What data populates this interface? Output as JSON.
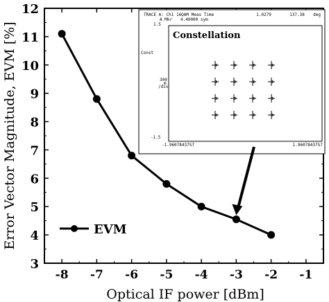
{
  "chart_data": {
    "type": "line",
    "xlabel": "Optical IF power [dBm]",
    "ylabel": "Error Vector Magnitude, EVM [%]",
    "xlim": [
      -8.5,
      -0.5
    ],
    "ylim": [
      3,
      12
    ],
    "x_ticks": [
      -8,
      -7,
      -6,
      -5,
      -4,
      -3,
      -2,
      -1
    ],
    "y_ticks": [
      3,
      4,
      5,
      6,
      7,
      8,
      9,
      10,
      11,
      12
    ],
    "grid": false,
    "legend_position": "bottom-left",
    "series": [
      {
        "name": "EVM",
        "color": "#000000",
        "x": [
          -8,
          -7,
          -6,
          -5,
          -4,
          -3,
          -2
        ],
        "y": [
          11.1,
          8.8,
          6.8,
          5.8,
          5.0,
          4.55,
          4.0
        ]
      }
    ],
    "annotation": {
      "arrow_target_x": -3,
      "arrow_target_y": 4.55
    },
    "inset": {
      "title": "Constellation",
      "header_left": "TRACE A: Ch1 16QAM Meas Time",
      "header_value1": "1.0279",
      "header_value2": "137.38",
      "header_unit": "deg",
      "marker_label": "A Mkr",
      "marker_value": "4.40000 sym",
      "y_top_label": "1.5",
      "y_bottom_label": "-1.5",
      "side_label_1": "Const",
      "side_label_2": "300",
      "side_label_3": "m",
      "side_label_4": "/div",
      "x_left_label": "-1.96078437S7",
      "x_right_label": "1.96078437S7",
      "grid_points": 4
    }
  }
}
